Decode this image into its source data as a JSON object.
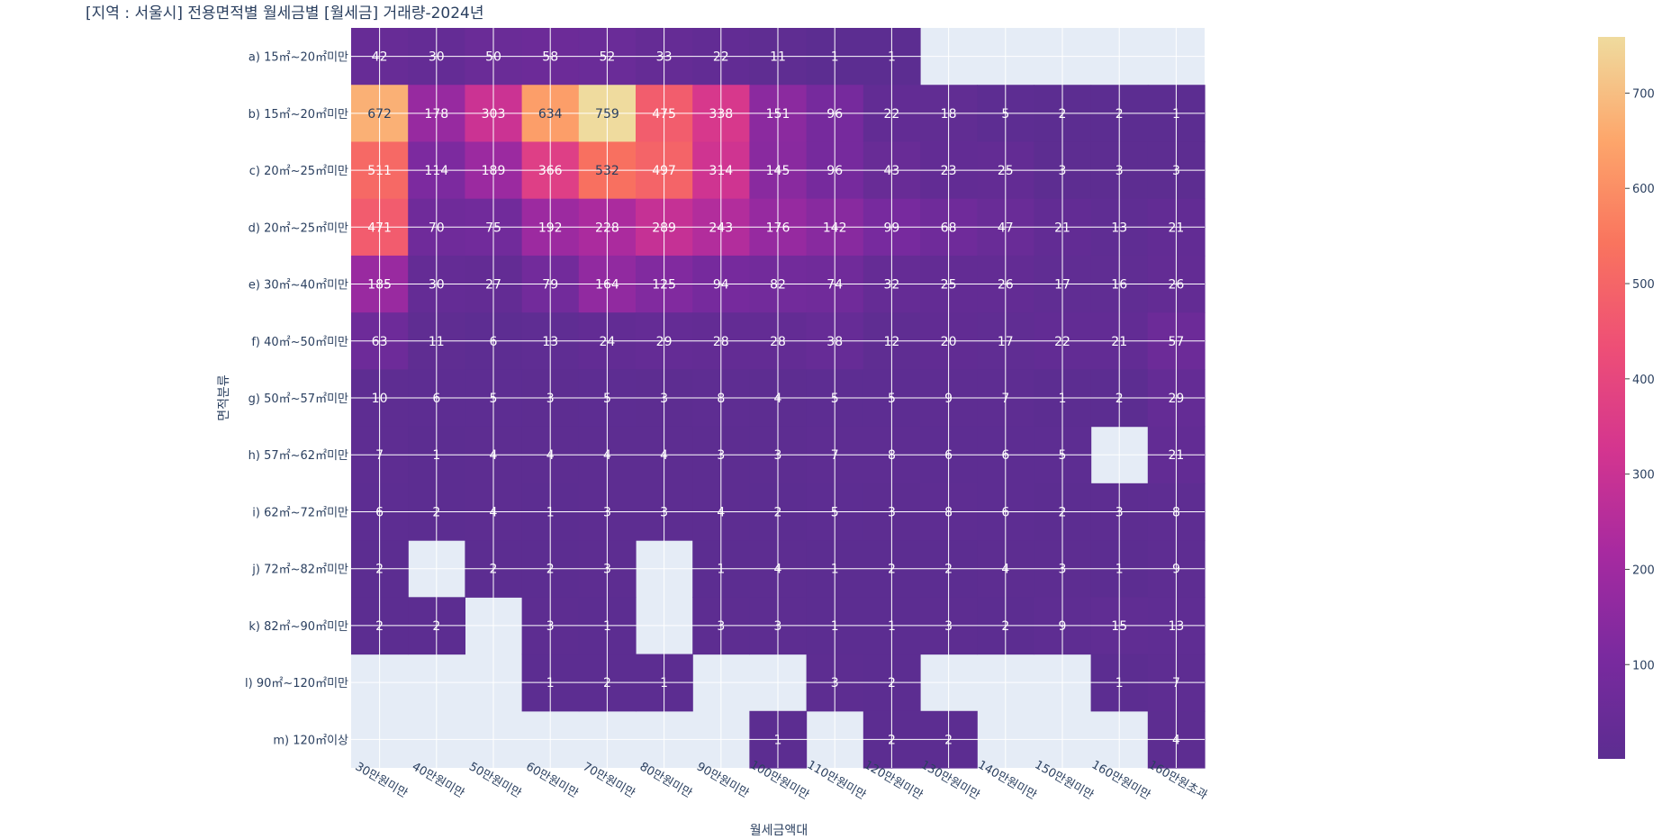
{
  "chart_data": {
    "type": "heatmap",
    "title": "[지역 : 서울시] 전용면적별 월세금별 [월세금] 거래량-2024년",
    "xlabel": "월세금액대",
    "ylabel": "면적분류",
    "x": [
      "30만원미만",
      "40만원미만",
      "50만원미만",
      "60만원미만",
      "70만원미만",
      "80만원미만",
      "90만원미만",
      "100만원미만",
      "110만원미만",
      "120만원미만",
      "130만원미만",
      "140만원미만",
      "150만원미만",
      "160만원미만",
      "160만원초과"
    ],
    "y": [
      "a) 15㎡~20㎡미만",
      "b) 15㎡~20㎡미만",
      "c) 20㎡~25㎡미만",
      "d) 20㎡~25㎡미만",
      "e) 30㎡~40㎡미만",
      "f) 40㎡~50㎡미만",
      "g) 50㎡~57㎡미만",
      "h) 57㎡~62㎡미만",
      "i) 62㎡~72㎡미만",
      "j) 72㎡~82㎡미만",
      "k) 82㎡~90㎡미만",
      "l) 90㎡~120㎡미만",
      "m) 120㎡이상"
    ],
    "z": [
      [
        42,
        30,
        50,
        58,
        52,
        33,
        22,
        11,
        1,
        1,
        null,
        null,
        null,
        null,
        null
      ],
      [
        672,
        178,
        303,
        634,
        759,
        475,
        338,
        151,
        96,
        22,
        18,
        5,
        2,
        2,
        1
      ],
      [
        511,
        114,
        189,
        366,
        532,
        497,
        314,
        145,
        96,
        43,
        23,
        25,
        3,
        3,
        3
      ],
      [
        471,
        70,
        75,
        192,
        228,
        289,
        243,
        176,
        142,
        99,
        68,
        47,
        21,
        13,
        21
      ],
      [
        185,
        30,
        27,
        79,
        164,
        125,
        94,
        82,
        74,
        32,
        25,
        26,
        17,
        16,
        26
      ],
      [
        63,
        11,
        6,
        13,
        24,
        29,
        28,
        28,
        38,
        12,
        20,
        17,
        22,
        21,
        57
      ],
      [
        10,
        6,
        5,
        3,
        5,
        3,
        8,
        4,
        5,
        5,
        9,
        7,
        1,
        2,
        29
      ],
      [
        7,
        1,
        4,
        4,
        4,
        4,
        3,
        3,
        7,
        8,
        6,
        6,
        5,
        null,
        21
      ],
      [
        6,
        2,
        4,
        1,
        3,
        3,
        4,
        2,
        5,
        3,
        8,
        6,
        2,
        3,
        8
      ],
      [
        2,
        null,
        2,
        2,
        3,
        null,
        1,
        4,
        1,
        2,
        2,
        4,
        3,
        1,
        9
      ],
      [
        2,
        2,
        null,
        3,
        1,
        null,
        3,
        3,
        1,
        1,
        3,
        2,
        9,
        15,
        13
      ],
      [
        null,
        null,
        null,
        1,
        2,
        1,
        null,
        null,
        3,
        2,
        null,
        null,
        null,
        1,
        7
      ],
      [
        null,
        null,
        null,
        null,
        null,
        null,
        null,
        1,
        null,
        2,
        2,
        null,
        null,
        null,
        4
      ]
    ],
    "zrange": [
      1,
      759
    ],
    "colorscale": [
      "#5c2d91",
      "#7a2a9f",
      "#a72aa0",
      "#d4358f",
      "#ee4f76",
      "#f9745e",
      "#fda66b",
      "#efdb9e"
    ],
    "colorbar_ticks": [
      100,
      200,
      300,
      400,
      500,
      600,
      700
    ],
    "empty_color": "#e5ecf6",
    "grid": true
  }
}
